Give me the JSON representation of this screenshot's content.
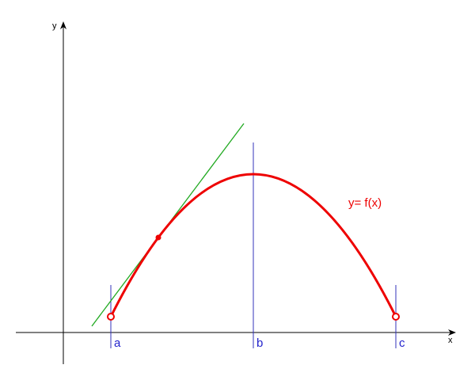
{
  "axes": {
    "x_label": "x",
    "y_label": "y"
  },
  "points": {
    "a": "a",
    "b": "b",
    "c": "c"
  },
  "curve_label": "y= f(x)"
}
